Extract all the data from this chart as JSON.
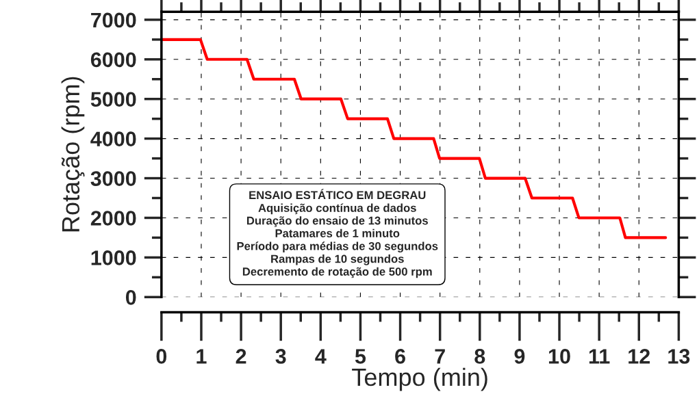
{
  "chart_data": {
    "type": "line",
    "xlabel": "Tempo (min)",
    "ylabel": "Rotação (rpm)",
    "series": [
      {
        "color": "#ff0000",
        "x": [
          0,
          0.98,
          1.15,
          2.15,
          2.32,
          3.34,
          3.51,
          4.51,
          4.68,
          5.68,
          5.84,
          6.84,
          6.99,
          7.99,
          8.14,
          9.14,
          9.31,
          10.33,
          10.49,
          11.52,
          11.66,
          12.67
        ],
        "values": [
          6500,
          6500,
          6000,
          6000,
          5500,
          5500,
          5000,
          5000,
          4500,
          4500,
          4000,
          4000,
          3500,
          3500,
          3000,
          3000,
          2500,
          2500,
          2000,
          2000,
          1500,
          1500
        ]
      }
    ],
    "xlim": [
      0,
      13
    ],
    "xticks": [
      0,
      1,
      2,
      3,
      4,
      5,
      6,
      7,
      8,
      9,
      10,
      11,
      12,
      13
    ],
    "ylim": [
      0,
      7200
    ],
    "yticks": [
      0,
      1000,
      2000,
      3000,
      4000,
      5000,
      6000,
      7000
    ],
    "grid": true,
    "line_style": "solid",
    "marker": "none",
    "annotations": [
      "ENSAIO ESTÁTICO EM DEGRAU",
      "Aquisição contínua de dados",
      "Duração do ensaio de 13 minutos",
      "Patamares de 1 minuto",
      "Período para médias de 30 segundos",
      "Rampas de 10 segundos",
      "Decremento de rotação de 500 rpm"
    ]
  }
}
